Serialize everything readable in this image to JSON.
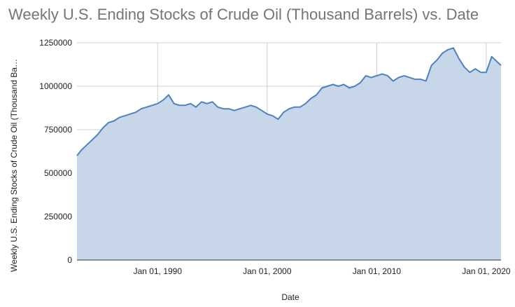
{
  "chart_data": {
    "type": "area",
    "title": "Weekly U.S. Ending Stocks of Crude Oil  (Thousand Barrels) vs. Date",
    "xlabel": "Date",
    "ylabel": "Weekly U.S. Ending Stocks of Crude Oil  (Thousand Ba…",
    "x_tick_labels": [
      "Jan 01, 1990",
      "Jan 01, 2000",
      "Jan 01, 2010",
      "Jan 01, 2020"
    ],
    "y_tick_labels": [
      "0",
      "250000",
      "500000",
      "750000",
      "1000000",
      "1250000"
    ],
    "ylim": [
      0,
      1250000
    ],
    "xlim": [
      "1982-08-20",
      "2021-05-07"
    ],
    "grid": true,
    "colors": {
      "line": "#4f81bd",
      "fill": "#c8d6ea",
      "grid": "#c9d0da"
    },
    "series": [
      {
        "x": [
          "1982-08-20",
          "1983-01-01",
          "1983-07-01",
          "1984-01-01",
          "1984-07-01",
          "1985-01-01",
          "1985-07-01",
          "1986-01-01",
          "1986-07-01",
          "1987-01-01",
          "1987-07-01",
          "1988-01-01",
          "1988-07-01",
          "1989-01-01",
          "1989-07-01",
          "1990-01-01",
          "1990-07-01",
          "1991-01-01",
          "1991-07-01",
          "1992-01-01",
          "1992-07-01",
          "1993-01-01",
          "1993-07-01",
          "1994-01-01",
          "1994-07-01",
          "1995-01-01",
          "1995-07-01",
          "1996-01-01",
          "1996-07-01",
          "1997-01-01",
          "1997-07-01",
          "1998-01-01",
          "1998-07-01",
          "1999-01-01",
          "1999-07-01",
          "2000-01-01",
          "2000-07-01",
          "2001-01-01",
          "2001-07-01",
          "2002-01-01",
          "2002-07-01",
          "2003-01-01",
          "2003-07-01",
          "2004-01-01",
          "2004-07-01",
          "2005-01-01",
          "2005-07-01",
          "2006-01-01",
          "2006-07-01",
          "2007-01-01",
          "2007-07-01",
          "2008-01-01",
          "2008-07-01",
          "2009-01-01",
          "2009-07-01",
          "2010-01-01",
          "2010-07-01",
          "2011-01-01",
          "2011-07-01",
          "2012-01-01",
          "2012-07-01",
          "2013-01-01",
          "2013-07-01",
          "2014-01-01",
          "2014-07-01",
          "2015-01-01",
          "2015-07-01",
          "2016-01-01",
          "2016-07-01",
          "2017-01-01",
          "2017-07-01",
          "2018-01-01",
          "2018-07-01",
          "2019-01-01",
          "2019-07-01",
          "2020-01-01",
          "2020-07-01",
          "2021-01-01",
          "2021-05-07"
        ],
        "y": [
          600000,
          630000,
          660000,
          690000,
          720000,
          760000,
          790000,
          800000,
          820000,
          830000,
          840000,
          850000,
          870000,
          880000,
          890000,
          900000,
          920000,
          950000,
          900000,
          890000,
          890000,
          900000,
          880000,
          910000,
          900000,
          910000,
          880000,
          870000,
          870000,
          860000,
          870000,
          880000,
          890000,
          880000,
          860000,
          840000,
          830000,
          810000,
          850000,
          870000,
          880000,
          880000,
          900000,
          930000,
          950000,
          990000,
          1000000,
          1010000,
          1000000,
          1010000,
          990000,
          1000000,
          1020000,
          1060000,
          1050000,
          1060000,
          1070000,
          1060000,
          1030000,
          1050000,
          1060000,
          1050000,
          1040000,
          1040000,
          1030000,
          1120000,
          1150000,
          1190000,
          1210000,
          1220000,
          1160000,
          1110000,
          1080000,
          1100000,
          1080000,
          1080000,
          1170000,
          1140000,
          1120000
        ]
      }
    ]
  }
}
